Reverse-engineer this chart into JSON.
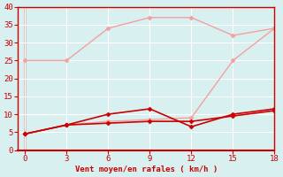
{
  "xlabel": "Vent moyen/en rafales ( km/h )",
  "x": [
    0,
    3,
    6,
    9,
    12,
    15,
    18
  ],
  "lines": [
    {
      "y": [
        25,
        25,
        34,
        37,
        37,
        32,
        34
      ],
      "color": "#f4a0a0",
      "linewidth": 1.0,
      "marker": "D",
      "markersize": 2.5
    },
    {
      "y": [
        4.5,
        7,
        8,
        8.5,
        9,
        25,
        34
      ],
      "color": "#f4a0a0",
      "linewidth": 1.0,
      "marker": "D",
      "markersize": 2.5
    },
    {
      "y": [
        4.5,
        7,
        10,
        11.5,
        6.5,
        10,
        11.5
      ],
      "color": "#cc0000",
      "linewidth": 1.2,
      "marker": "D",
      "markersize": 2.5
    },
    {
      "y": [
        4.5,
        7,
        7.5,
        8,
        8,
        9.5,
        11
      ],
      "color": "#cc0000",
      "linewidth": 1.2,
      "marker": "D",
      "markersize": 2.5
    }
  ],
  "xlim": [
    -0.5,
    18
  ],
  "ylim": [
    0,
    40
  ],
  "xticks": [
    0,
    3,
    6,
    9,
    12,
    15,
    18
  ],
  "yticks": [
    0,
    5,
    10,
    15,
    20,
    25,
    30,
    35,
    40
  ],
  "bg_color": "#d8f0f0",
  "grid_color": "#ffffff",
  "axis_color": "#cc0000",
  "tick_color": "#cc0000",
  "label_color": "#cc0000",
  "label_fontsize": 6.5,
  "tick_fontsize": 6.5
}
